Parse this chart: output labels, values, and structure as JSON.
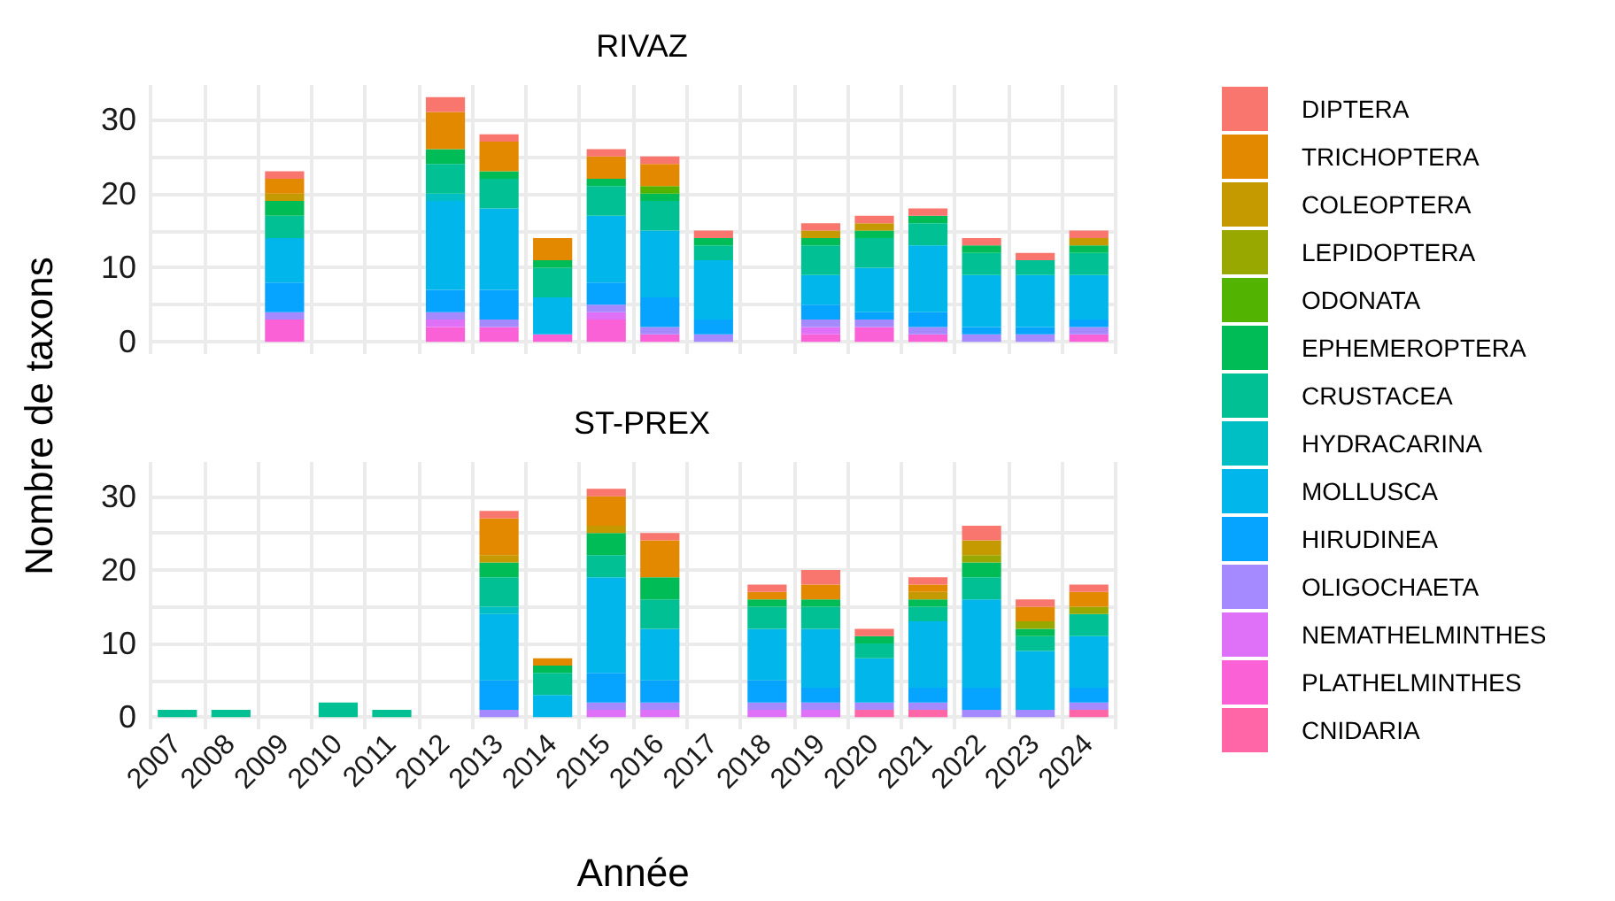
{
  "chart_data": [
    {
      "type": "bar",
      "title": "RIVAZ",
      "ylabel": "Nombre de taxons",
      "stacked": true,
      "grid": true,
      "legend": "right",
      "tick_labels": "y",
      "categories": [
        "2007",
        "2008",
        "2009",
        "2010",
        "2011",
        "2012",
        "2013",
        "2014",
        "2015",
        "2016",
        "2017",
        "2018",
        "2019",
        "2020",
        "2021",
        "2022",
        "2023",
        "2024"
      ],
      "ylim": [
        -1.65,
        34.65
      ],
      "yticks": [
        0,
        {
          "value": 5,
          "label": null
        },
        10,
        {
          "value": 15,
          "label": null
        },
        20,
        {
          "value": 25,
          "label": null
        },
        30
      ],
      "series": [
        {
          "name": "CNIDARIA",
          "color": "#ff66a8",
          "values": [
            null,
            null,
            null,
            null,
            null,
            null,
            null,
            null,
            null,
            null,
            null,
            null,
            null,
            null,
            null,
            null,
            null,
            null
          ]
        },
        {
          "name": "PLATHELMINTHES",
          "color": "#fb61d7",
          "values": [
            null,
            null,
            3,
            null,
            null,
            2,
            2,
            1,
            3,
            1,
            null,
            null,
            1,
            2,
            1,
            null,
            null,
            1
          ]
        },
        {
          "name": "NEMATHELMINTHES",
          "color": "#df70f8",
          "values": [
            null,
            null,
            null,
            null,
            null,
            1,
            null,
            null,
            1,
            null,
            null,
            null,
            1,
            null,
            null,
            null,
            null,
            null
          ]
        },
        {
          "name": "OLIGOCHAETA",
          "color": "#a58aff",
          "values": [
            null,
            null,
            1,
            null,
            null,
            1,
            1,
            null,
            1,
            1,
            1,
            null,
            1,
            1,
            1,
            1,
            1,
            1
          ]
        },
        {
          "name": "HIRUDINEA",
          "color": "#06a4ff",
          "values": [
            null,
            null,
            4,
            null,
            null,
            3,
            4,
            null,
            3,
            4,
            2,
            null,
            2,
            1,
            2,
            1,
            1,
            1
          ]
        },
        {
          "name": "MOLLUSCA",
          "color": "#00b6eb",
          "values": [
            null,
            null,
            6,
            null,
            null,
            12,
            11,
            5,
            9,
            9,
            8,
            null,
            4,
            6,
            9,
            7,
            7,
            6
          ]
        },
        {
          "name": "HYDRACARINA",
          "color": "#00bfc4",
          "values": [
            null,
            null,
            null,
            null,
            null,
            1,
            null,
            null,
            null,
            null,
            null,
            null,
            null,
            null,
            null,
            null,
            null,
            null
          ]
        },
        {
          "name": "CRUSTACEA",
          "color": "#00c094",
          "values": [
            null,
            null,
            3,
            null,
            null,
            4,
            4,
            4,
            4,
            4,
            2,
            null,
            4,
            4,
            3,
            3,
            2,
            3
          ]
        },
        {
          "name": "EPHEMEROPTERA",
          "color": "#00bc56",
          "values": [
            null,
            null,
            2,
            null,
            null,
            2,
            1,
            1,
            1,
            1,
            1,
            null,
            1,
            1,
            1,
            1,
            null,
            1
          ]
        },
        {
          "name": "ODONATA",
          "color": "#53b400",
          "values": [
            null,
            null,
            null,
            null,
            null,
            null,
            null,
            null,
            null,
            1,
            null,
            null,
            null,
            null,
            null,
            null,
            null,
            null
          ]
        },
        {
          "name": "LEPIDOPTERA",
          "color": "#99a800",
          "values": [
            null,
            null,
            null,
            null,
            null,
            null,
            null,
            null,
            null,
            null,
            null,
            null,
            null,
            null,
            null,
            null,
            null,
            null
          ]
        },
        {
          "name": "COLEOPTERA",
          "color": "#c49a00",
          "values": [
            null,
            null,
            1,
            null,
            null,
            null,
            null,
            null,
            null,
            null,
            null,
            null,
            1,
            1,
            null,
            null,
            null,
            1
          ]
        },
        {
          "name": "TRICHOPTERA",
          "color": "#e38900",
          "values": [
            null,
            null,
            2,
            null,
            null,
            5,
            4,
            3,
            3,
            3,
            null,
            null,
            null,
            null,
            null,
            null,
            null,
            null
          ]
        },
        {
          "name": "DIPTERA",
          "color": "#f8766d",
          "values": [
            null,
            null,
            1,
            null,
            null,
            2,
            1,
            null,
            1,
            1,
            1,
            null,
            1,
            1,
            1,
            1,
            1,
            1
          ]
        }
      ]
    },
    {
      "type": "bar",
      "title": "ST-PREX",
      "xlabel": "Année",
      "stacked": true,
      "grid": true,
      "categories": [
        "2007",
        "2008",
        "2009",
        "2010",
        "2011",
        "2012",
        "2013",
        "2014",
        "2015",
        "2016",
        "2017",
        "2018",
        "2019",
        "2020",
        "2021",
        "2022",
        "2023",
        "2024"
      ],
      "ylim": [
        -1.65,
        34.65
      ],
      "yticks": [
        0,
        {
          "value": 5,
          "label": null
        },
        10,
        {
          "value": 15,
          "label": null
        },
        20,
        {
          "value": 25,
          "label": null
        },
        30
      ],
      "series": [
        {
          "color": "#ff66a8",
          "values": [
            null,
            null,
            null,
            null,
            null,
            null,
            null,
            null,
            null,
            null,
            null,
            null,
            null,
            1,
            1,
            null,
            null,
            1
          ]
        },
        {
          "color": "#fb61d7",
          "values": [
            null,
            null,
            null,
            null,
            null,
            null,
            null,
            null,
            null,
            null,
            null,
            null,
            null,
            null,
            null,
            null,
            null,
            null
          ]
        },
        {
          "color": "#df70f8",
          "values": [
            null,
            null,
            null,
            null,
            null,
            null,
            null,
            null,
            1,
            1,
            null,
            1,
            1,
            null,
            null,
            null,
            null,
            null
          ]
        },
        {
          "color": "#a58aff",
          "values": [
            null,
            null,
            null,
            null,
            null,
            null,
            1,
            null,
            1,
            1,
            null,
            1,
            1,
            1,
            1,
            1,
            1,
            1
          ]
        },
        {
          "color": "#06a4ff",
          "values": [
            null,
            null,
            null,
            null,
            null,
            null,
            4,
            null,
            4,
            3,
            null,
            3,
            2,
            null,
            2,
            3,
            null,
            2
          ]
        },
        {
          "color": "#00b6eb",
          "values": [
            null,
            null,
            null,
            null,
            null,
            null,
            9,
            3,
            13,
            7,
            null,
            7,
            8,
            6,
            9,
            12,
            8,
            7
          ]
        },
        {
          "color": "#00bfc4",
          "values": [
            null,
            null,
            null,
            null,
            null,
            null,
            1,
            null,
            null,
            null,
            null,
            null,
            null,
            null,
            null,
            null,
            null,
            null
          ]
        },
        {
          "color": "#00c094",
          "values": [
            1,
            1,
            null,
            2,
            1,
            null,
            4,
            3,
            3,
            4,
            null,
            3,
            3,
            2,
            2,
            3,
            2,
            3
          ]
        },
        {
          "color": "#00bc56",
          "values": [
            null,
            null,
            null,
            null,
            null,
            null,
            2,
            1,
            3,
            3,
            null,
            1,
            1,
            1,
            1,
            2,
            1,
            null
          ]
        },
        {
          "color": "#53b400",
          "values": [
            null,
            null,
            null,
            null,
            null,
            null,
            null,
            null,
            null,
            null,
            null,
            null,
            null,
            null,
            null,
            null,
            null,
            null
          ]
        },
        {
          "color": "#99a800",
          "values": [
            null,
            null,
            null,
            null,
            null,
            null,
            null,
            null,
            null,
            null,
            null,
            null,
            null,
            null,
            null,
            1,
            1,
            1
          ]
        },
        {
          "color": "#c49a00",
          "values": [
            null,
            null,
            null,
            null,
            null,
            null,
            1,
            null,
            1,
            null,
            null,
            null,
            null,
            null,
            1,
            2,
            null,
            null
          ]
        },
        {
          "color": "#e38900",
          "values": [
            null,
            null,
            null,
            null,
            null,
            null,
            5,
            1,
            4,
            5,
            null,
            1,
            2,
            null,
            1,
            null,
            2,
            2
          ]
        },
        {
          "color": "#f8766d",
          "values": [
            null,
            null,
            null,
            null,
            null,
            null,
            1,
            null,
            1,
            1,
            null,
            1,
            2,
            1,
            1,
            2,
            1,
            1
          ]
        }
      ]
    }
  ]
}
